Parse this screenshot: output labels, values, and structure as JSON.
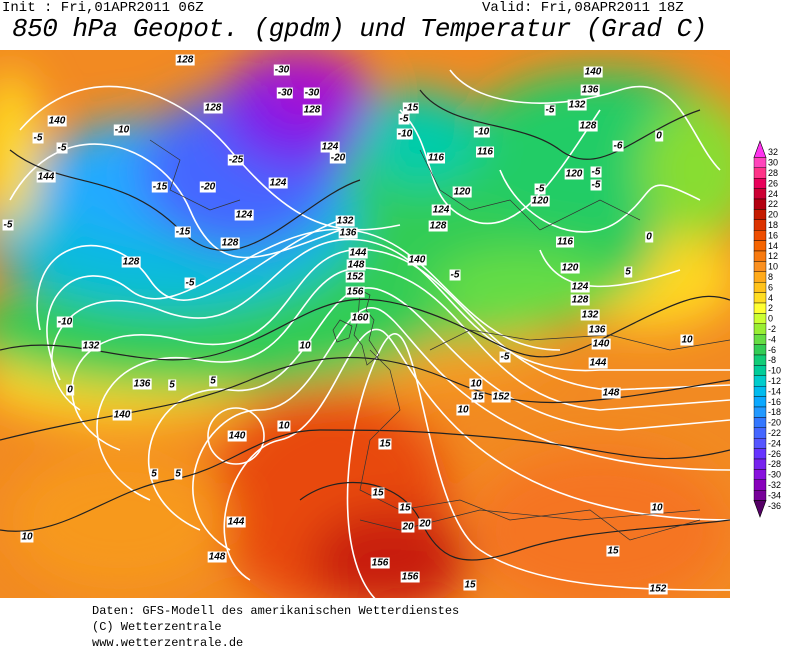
{
  "header": {
    "init": "Init : Fri,01APR2011 06Z",
    "valid": "Valid: Fri,08APR2011 18Z",
    "title": "850 hPa Geopot. (gpdm) und Temperatur (Grad C)"
  },
  "map": {
    "labels": [
      "128",
      "-30",
      "128",
      "-30",
      "-30",
      "128",
      "-10",
      "140",
      "-5",
      "-5",
      "144",
      "-15",
      "-20",
      "-25",
      "124",
      "-20",
      "124",
      "-5",
      "-15",
      "128",
      "124",
      "132",
      "136",
      "144",
      "148",
      "152",
      "156",
      "160",
      "128",
      "-5",
      "-10",
      "132",
      "136",
      "140",
      "5",
      "5",
      "0",
      "140",
      "10",
      "144",
      "148",
      "10",
      "5",
      "5",
      "10",
      "116",
      "116",
      "-10",
      "120",
      "124",
      "128",
      "140",
      "-5",
      "-5",
      "-15",
      "-10",
      "-5",
      "132",
      "136",
      "140",
      "128",
      "120",
      "-5",
      "-5",
      "-6",
      "0",
      "-5",
      "120",
      "116",
      "120",
      "124",
      "128",
      "132",
      "136",
      "140",
      "144",
      "148",
      "0",
      "5",
      "10",
      "-5",
      "10",
      "15",
      "152",
      "10",
      "15",
      "15",
      "15",
      "20",
      "20",
      "156",
      "156",
      "15",
      "15",
      "152",
      "10"
    ]
  },
  "colorbar": [
    {
      "label": "32",
      "color": "#ff33ee"
    },
    {
      "label": "30",
      "color": "#ff44bb"
    },
    {
      "label": "28",
      "color": "#ff3388"
    },
    {
      "label": "26",
      "color": "#e8005a"
    },
    {
      "label": "24",
      "color": "#cc0033"
    },
    {
      "label": "22",
      "color": "#b30010"
    },
    {
      "label": "20",
      "color": "#c41a00"
    },
    {
      "label": "18",
      "color": "#dc3300"
    },
    {
      "label": "16",
      "color": "#ee4d00"
    },
    {
      "label": "14",
      "color": "#f56400"
    },
    {
      "label": "12",
      "color": "#f77a10"
    },
    {
      "label": "10",
      "color": "#fa9020"
    },
    {
      "label": "8",
      "color": "#ffaa1a"
    },
    {
      "label": "6",
      "color": "#ffc21a"
    },
    {
      "label": "4",
      "color": "#ffdd22"
    },
    {
      "label": "2",
      "color": "#ffff33"
    },
    {
      "label": "0",
      "color": "#ccff33"
    },
    {
      "label": "-2",
      "color": "#99ee33"
    },
    {
      "label": "-4",
      "color": "#66dd44"
    },
    {
      "label": "-6",
      "color": "#33cc55"
    },
    {
      "label": "-8",
      "color": "#11cc77"
    },
    {
      "label": "-10",
      "color": "#00cc99"
    },
    {
      "label": "-12",
      "color": "#00cccc"
    },
    {
      "label": "-14",
      "color": "#00bbee"
    },
    {
      "label": "-16",
      "color": "#0aa8ff"
    },
    {
      "label": "-18",
      "color": "#2299ff"
    },
    {
      "label": "-20",
      "color": "#3377ff"
    },
    {
      "label": "-22",
      "color": "#4466ff"
    },
    {
      "label": "-24",
      "color": "#5555ff"
    },
    {
      "label": "-26",
      "color": "#6633ff"
    },
    {
      "label": "-28",
      "color": "#7722ee"
    },
    {
      "label": "-30",
      "color": "#8811dd"
    },
    {
      "label": "-32",
      "color": "#8800bb"
    },
    {
      "label": "-34",
      "color": "#770099"
    },
    {
      "label": "-36",
      "color": "#550066"
    }
  ],
  "footer": [
    "Daten: GFS-Modell des amerikanischen Wetterdienstes",
    "(C) Wetterzentrale",
    "www.wetterzentrale.de"
  ]
}
